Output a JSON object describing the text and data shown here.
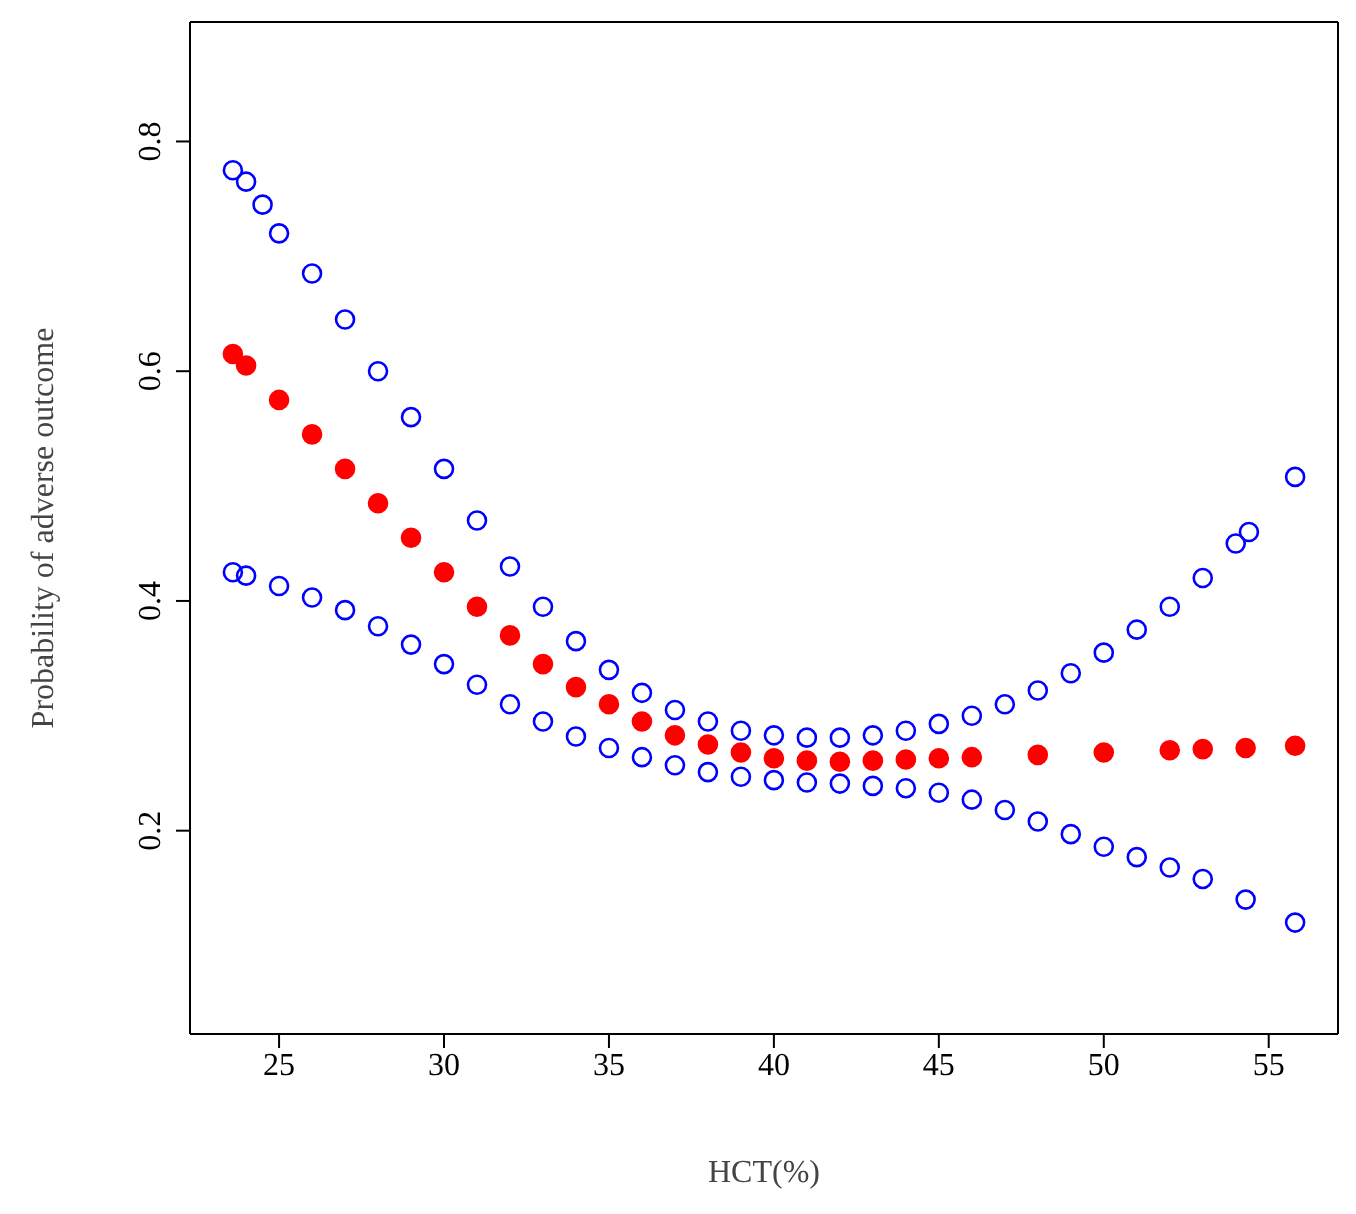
{
  "chart_data": {
    "type": "scatter",
    "xlabel": "HCT(%)",
    "ylabel": "Probability of adverse outcome",
    "xlim": [
      22.3,
      57.1
    ],
    "ylim": [
      0.023,
      0.904
    ],
    "xticks": [
      25,
      30,
      35,
      40,
      45,
      50,
      55
    ],
    "yticks": [
      0.2,
      0.4,
      0.6,
      0.8
    ],
    "marker": "circle",
    "series": [
      {
        "color": "#0000ff",
        "x": [
          23.6,
          24,
          24.5,
          25,
          26,
          27,
          28,
          29,
          30,
          31,
          32,
          33,
          34,
          35,
          36,
          37,
          38,
          39,
          40,
          41,
          42,
          43,
          44,
          45,
          46,
          47,
          48,
          49,
          50,
          51,
          52,
          53,
          54,
          54.4,
          55.8
        ],
        "values": [
          0.775,
          0.765,
          0.745,
          0.72,
          0.685,
          0.645,
          0.6,
          0.56,
          0.515,
          0.47,
          0.43,
          0.395,
          0.365,
          0.34,
          0.32,
          0.305,
          0.295,
          0.287,
          0.283,
          0.281,
          0.281,
          0.283,
          0.287,
          0.293,
          0.3,
          0.31,
          0.322,
          0.337,
          0.355,
          0.375,
          0.395,
          0.42,
          0.45,
          0.46,
          0.508
        ]
      },
      {
        "color": "#ff0000",
        "x": [
          23.6,
          24,
          25,
          26,
          27,
          28,
          29,
          30,
          31,
          32,
          33,
          34,
          35,
          36,
          37,
          38,
          39,
          40,
          41,
          42,
          43,
          44,
          45,
          46,
          48,
          50,
          52,
          53,
          54.3,
          55.8
        ],
        "values": [
          0.615,
          0.605,
          0.575,
          0.545,
          0.515,
          0.485,
          0.455,
          0.425,
          0.395,
          0.37,
          0.345,
          0.325,
          0.31,
          0.295,
          0.283,
          0.275,
          0.268,
          0.263,
          0.261,
          0.26,
          0.261,
          0.262,
          0.263,
          0.264,
          0.266,
          0.268,
          0.27,
          0.271,
          0.272,
          0.274
        ]
      },
      {
        "color": "#0000ff",
        "x": [
          23.6,
          24,
          25,
          26,
          27,
          28,
          29,
          30,
          31,
          32,
          33,
          34,
          35,
          36,
          37,
          38,
          39,
          40,
          41,
          42,
          43,
          44,
          45,
          46,
          47,
          48,
          49,
          50,
          51,
          52,
          53,
          54.3,
          55.8
        ],
        "values": [
          0.425,
          0.422,
          0.413,
          0.403,
          0.392,
          0.378,
          0.362,
          0.345,
          0.327,
          0.31,
          0.295,
          0.282,
          0.272,
          0.264,
          0.257,
          0.251,
          0.247,
          0.244,
          0.242,
          0.241,
          0.239,
          0.237,
          0.233,
          0.227,
          0.218,
          0.208,
          0.197,
          0.186,
          0.177,
          0.168,
          0.158,
          0.14,
          0.12
        ]
      }
    ]
  }
}
